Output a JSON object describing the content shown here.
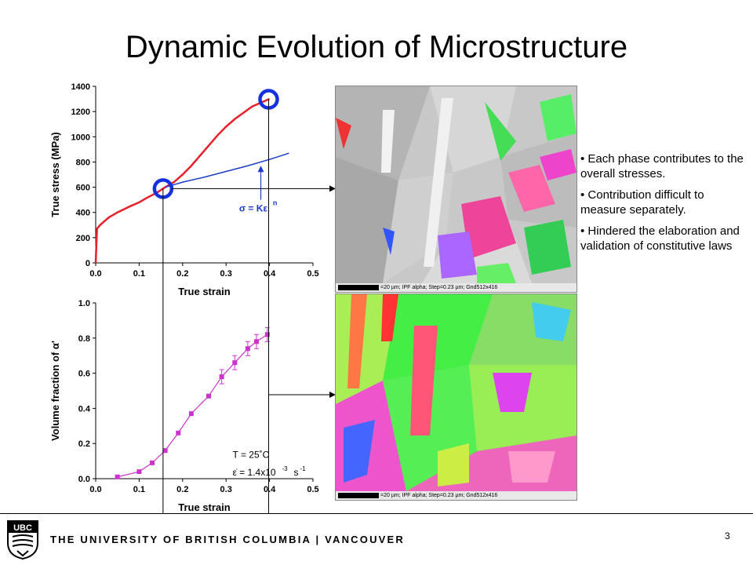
{
  "slide": {
    "title": "Dynamic Evolution of Microstructure",
    "page_number": "3",
    "university": "THE UNIVERSITY OF BRITISH COLUMBIA | VANCOUVER",
    "logo_text": "UBC"
  },
  "bullets": [
    "• Each phase contributes to the overall stresses.",
    "• Contribution difficult to measure separately.",
    "• Hindered the elaboration and validation of constitutive laws"
  ],
  "ebsd": {
    "top_caption": "=20 µm; IPF alpha; Step=0.23 µm; Gnd512x416",
    "bottom_caption": "=20 µm; IPF alpha; Step=0.23 µm; Gnd512x416"
  },
  "chart_data": [
    {
      "type": "line",
      "xlabel": "True strain",
      "ylabel": "True stress (MPa)",
      "xlim": [
        0,
        0.5
      ],
      "ylim": [
        0,
        1400
      ],
      "xticks": [
        "0.0",
        "0.1",
        "0.2",
        "0.3",
        "0.4",
        "0.5"
      ],
      "yticks": [
        "0",
        "200",
        "400",
        "600",
        "800",
        "1000",
        "1200",
        "1400"
      ],
      "series": [
        {
          "color": "#e8202a",
          "x": [
            0,
            0.003,
            0.01,
            0.03,
            0.05,
            0.08,
            0.1,
            0.12,
            0.14,
            0.16,
            0.18,
            0.2,
            0.22,
            0.24,
            0.26,
            0.28,
            0.3,
            0.32,
            0.34,
            0.36,
            0.38,
            0.4
          ],
          "y": [
            0,
            270,
            300,
            360,
            400,
            450,
            480,
            520,
            555,
            600,
            640,
            700,
            770,
            850,
            930,
            1010,
            1080,
            1140,
            1190,
            1240,
            1270,
            1300
          ]
        },
        {
          "color": "#1c3cc8",
          "x": [
            0.16,
            0.2,
            0.25,
            0.3,
            0.35,
            0.4,
            0.445
          ],
          "y": [
            600,
            640,
            680,
            725,
            770,
            820,
            870
          ]
        }
      ],
      "annotation": "σ = Kε",
      "annotation_superscript": "n",
      "markers_x": [
        0.155,
        0.398
      ]
    },
    {
      "type": "scatter",
      "xlabel": "True strain",
      "ylabel": "Volume fraction of α'",
      "xlim": [
        0,
        0.5
      ],
      "ylim": [
        0,
        1.0
      ],
      "xticks": [
        "0.0",
        "0.1",
        "0.2",
        "0.3",
        "0.4",
        "0.5"
      ],
      "yticks": [
        "0.0",
        "0.2",
        "0.4",
        "0.6",
        "0.8",
        "1.0"
      ],
      "series": [
        {
          "color": "#cc33cc",
          "x": [
            0.05,
            0.1,
            0.13,
            0.16,
            0.19,
            0.22,
            0.26,
            0.29,
            0.32,
            0.35,
            0.37,
            0.395
          ],
          "y": [
            0.01,
            0.04,
            0.09,
            0.16,
            0.26,
            0.37,
            0.47,
            0.58,
            0.66,
            0.74,
            0.78,
            0.82
          ]
        }
      ],
      "annotation_temperature": "T = 25˚C",
      "annotation_rate": "ε̇ = 1.4x10",
      "annotation_rate_exp": "-3",
      "annotation_rate_unit": "s",
      "annotation_rate_unit_exp": "-1"
    }
  ]
}
